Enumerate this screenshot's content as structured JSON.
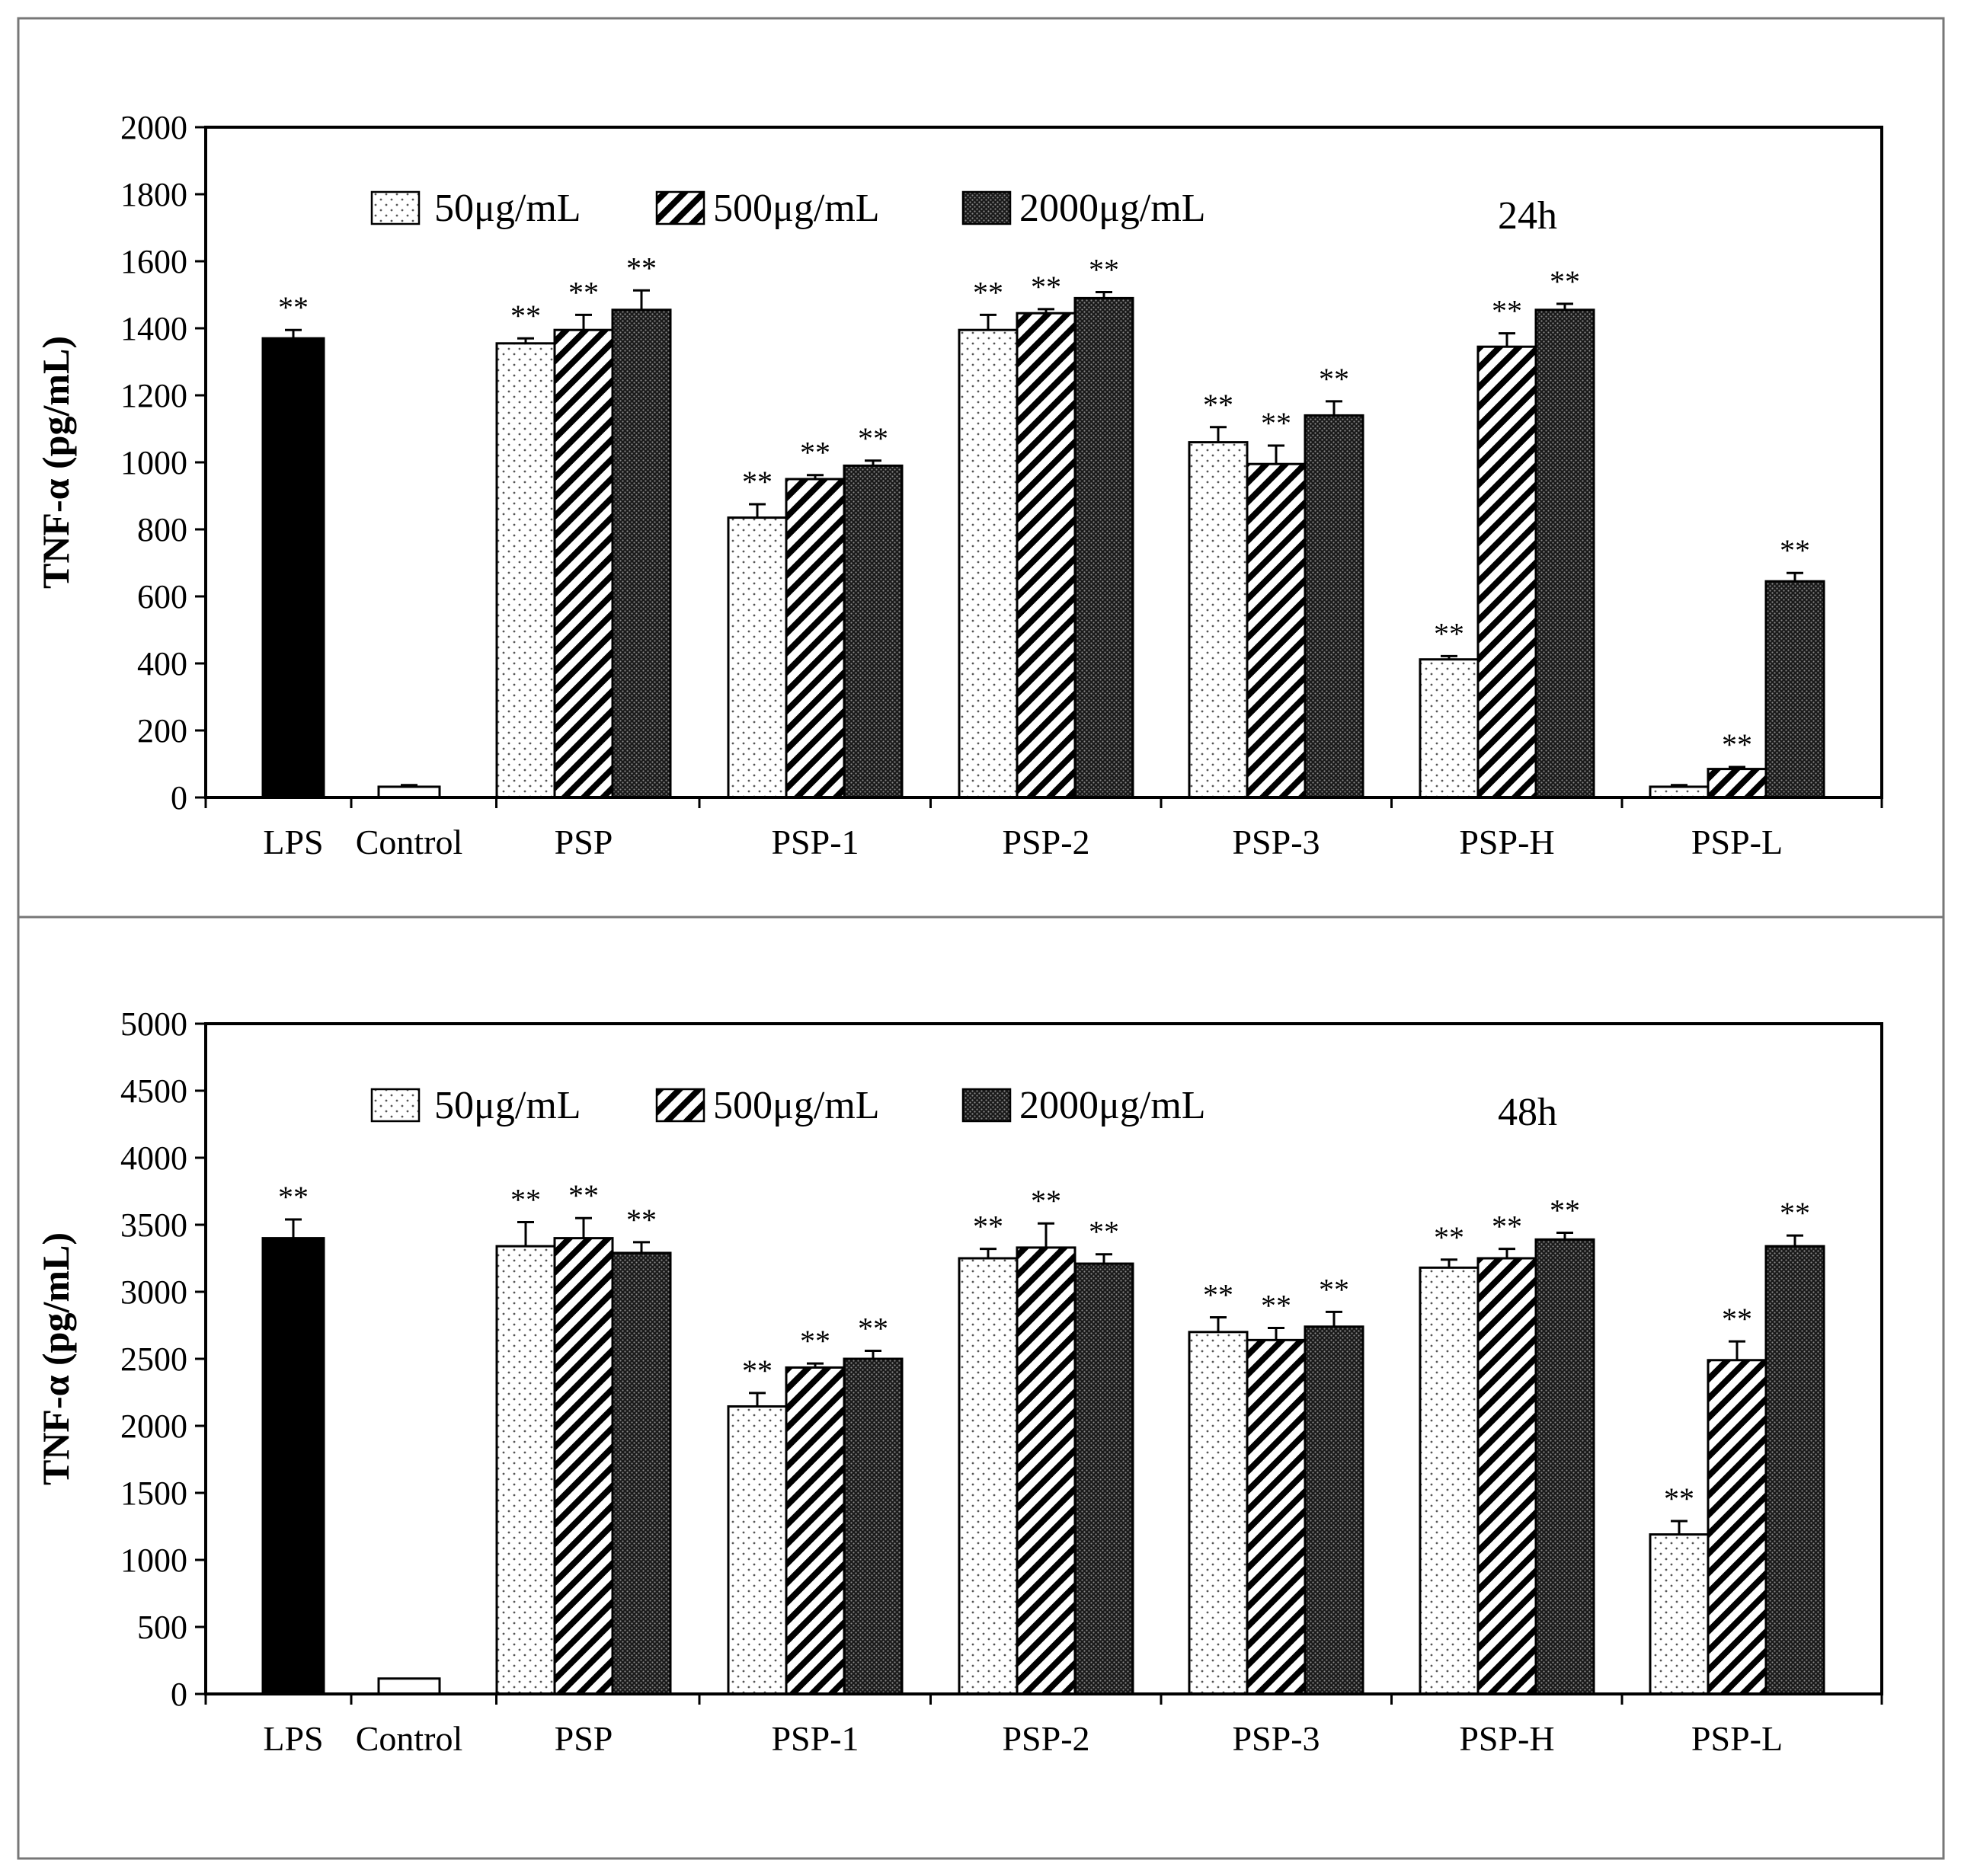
{
  "colors": {
    "ink": "#000000",
    "paper": "#ffffff",
    "frame": "#777777"
  },
  "chart_data": [
    {
      "type": "bar",
      "title": "24h",
      "xlabel": "",
      "ylabel": "TNF-α (pg/mL)",
      "ylim": [
        0,
        2000
      ],
      "yticks": [
        0,
        200,
        400,
        600,
        800,
        1000,
        1200,
        1400,
        1600,
        1800,
        2000
      ],
      "legend": [
        "50μg/mL",
        "500μg/mL",
        "2000μg/mL"
      ],
      "significance_marker": "**",
      "groups": [
        {
          "name": "LPS",
          "bars": [
            {
              "style": "solid",
              "value": 1370,
              "error": 25,
              "sig": true
            }
          ]
        },
        {
          "name": "Control",
          "bars": [
            {
              "style": "empty",
              "value": 32,
              "error": 5,
              "sig": false
            }
          ]
        },
        {
          "name": "PSP",
          "bars": [
            {
              "style": "dots",
              "value": 1355,
              "error": 15,
              "sig": true
            },
            {
              "style": "hatch",
              "value": 1395,
              "error": 45,
              "sig": true
            },
            {
              "style": "dense",
              "value": 1455,
              "error": 58,
              "sig": true
            }
          ]
        },
        {
          "name": "PSP-1",
          "bars": [
            {
              "style": "dots",
              "value": 835,
              "error": 40,
              "sig": true
            },
            {
              "style": "hatch",
              "value": 950,
              "error": 12,
              "sig": true
            },
            {
              "style": "dense",
              "value": 990,
              "error": 15,
              "sig": true
            }
          ]
        },
        {
          "name": "PSP-2",
          "bars": [
            {
              "style": "dots",
              "value": 1395,
              "error": 45,
              "sig": true
            },
            {
              "style": "hatch",
              "value": 1445,
              "error": 12,
              "sig": true
            },
            {
              "style": "dense",
              "value": 1490,
              "error": 18,
              "sig": true
            }
          ]
        },
        {
          "name": "PSP-3",
          "bars": [
            {
              "style": "dots",
              "value": 1060,
              "error": 45,
              "sig": true
            },
            {
              "style": "hatch",
              "value": 995,
              "error": 55,
              "sig": true
            },
            {
              "style": "dense",
              "value": 1140,
              "error": 42,
              "sig": true
            }
          ]
        },
        {
          "name": "PSP-H",
          "bars": [
            {
              "style": "dots",
              "value": 412,
              "error": 10,
              "sig": true
            },
            {
              "style": "hatch",
              "value": 1345,
              "error": 40,
              "sig": true
            },
            {
              "style": "dense",
              "value": 1455,
              "error": 18,
              "sig": true
            }
          ]
        },
        {
          "name": "PSP-L",
          "bars": [
            {
              "style": "dots",
              "value": 32,
              "error": 5,
              "sig": false
            },
            {
              "style": "hatch",
              "value": 85,
              "error": 6,
              "sig": true
            },
            {
              "style": "dense",
              "value": 645,
              "error": 25,
              "sig": true
            }
          ]
        }
      ]
    },
    {
      "type": "bar",
      "title": "48h",
      "xlabel": "",
      "ylabel": "TNF-α (pg/mL)",
      "ylim": [
        0,
        5000
      ],
      "yticks": [
        0,
        500,
        1000,
        1500,
        2000,
        2500,
        3000,
        3500,
        4000,
        4500,
        5000
      ],
      "legend": [
        "50μg/mL",
        "500μg/mL",
        "2000μg/mL"
      ],
      "significance_marker": "**",
      "groups": [
        {
          "name": "LPS",
          "bars": [
            {
              "style": "solid",
              "value": 3400,
              "error": 140,
              "sig": true
            }
          ]
        },
        {
          "name": "Control",
          "bars": [
            {
              "style": "empty",
              "value": 115,
              "error": 0,
              "sig": false
            }
          ]
        },
        {
          "name": "PSP",
          "bars": [
            {
              "style": "dots",
              "value": 3340,
              "error": 180,
              "sig": true
            },
            {
              "style": "hatch",
              "value": 3400,
              "error": 150,
              "sig": true
            },
            {
              "style": "dense",
              "value": 3290,
              "error": 80,
              "sig": true
            }
          ]
        },
        {
          "name": "PSP-1",
          "bars": [
            {
              "style": "dots",
              "value": 2145,
              "error": 100,
              "sig": true
            },
            {
              "style": "hatch",
              "value": 2435,
              "error": 30,
              "sig": true
            },
            {
              "style": "dense",
              "value": 2500,
              "error": 60,
              "sig": true
            }
          ]
        },
        {
          "name": "PSP-2",
          "bars": [
            {
              "style": "dots",
              "value": 3250,
              "error": 70,
              "sig": true
            },
            {
              "style": "hatch",
              "value": 3330,
              "error": 180,
              "sig": true
            },
            {
              "style": "dense",
              "value": 3210,
              "error": 70,
              "sig": true
            }
          ]
        },
        {
          "name": "PSP-3",
          "bars": [
            {
              "style": "dots",
              "value": 2700,
              "error": 110,
              "sig": true
            },
            {
              "style": "hatch",
              "value": 2640,
              "error": 90,
              "sig": true
            },
            {
              "style": "dense",
              "value": 2740,
              "error": 110,
              "sig": true
            }
          ]
        },
        {
          "name": "PSP-H",
          "bars": [
            {
              "style": "dots",
              "value": 3180,
              "error": 60,
              "sig": true
            },
            {
              "style": "hatch",
              "value": 3250,
              "error": 70,
              "sig": true
            },
            {
              "style": "dense",
              "value": 3390,
              "error": 50,
              "sig": true
            }
          ]
        },
        {
          "name": "PSP-L",
          "bars": [
            {
              "style": "dots",
              "value": 1190,
              "error": 100,
              "sig": true
            },
            {
              "style": "hatch",
              "value": 2490,
              "error": 140,
              "sig": true
            },
            {
              "style": "dense",
              "value": 3340,
              "error": 80,
              "sig": true
            }
          ]
        }
      ]
    }
  ]
}
